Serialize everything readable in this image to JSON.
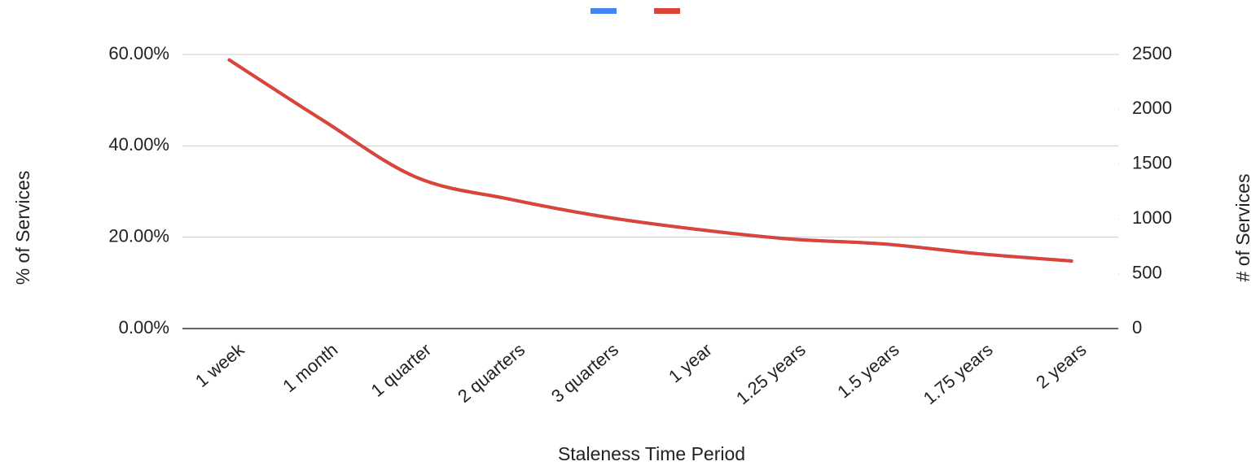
{
  "chart_data": {
    "type": "line",
    "x_label": "Staleness Time Period",
    "y_label": "% of Services",
    "y2_label": "# of Services",
    "categories": [
      "1 week",
      "1 month",
      "1 quarter",
      "2 quarters",
      "3 quarters",
      "1 year",
      "1.25 years",
      "1.5 years",
      "1.75 years",
      "2 years"
    ],
    "series": [
      {
        "color": "#4285f4",
        "values": [
          58.8,
          45.6,
          33.1,
          28.3,
          24.5,
          21.7,
          19.6,
          18.5,
          16.4,
          14.8
        ]
      },
      {
        "color": "#db4437",
        "axis": "y2",
        "values": [
          2450,
          1900,
          1380,
          1180,
          1020,
          905,
          816,
          772,
          683,
          616
        ]
      }
    ],
    "ylim": [
      0,
      60
    ],
    "yticks": [
      {
        "value": 0,
        "label": "0.00%"
      },
      {
        "value": 20,
        "label": "20.00%"
      },
      {
        "value": 40,
        "label": "40.00%"
      },
      {
        "value": 60,
        "label": "60.00%"
      }
    ],
    "y2lim": [
      0,
      2500
    ],
    "y2ticks": [
      0,
      500,
      1000,
      1500,
      2000,
      2500
    ],
    "grid": true,
    "legend": "top"
  }
}
